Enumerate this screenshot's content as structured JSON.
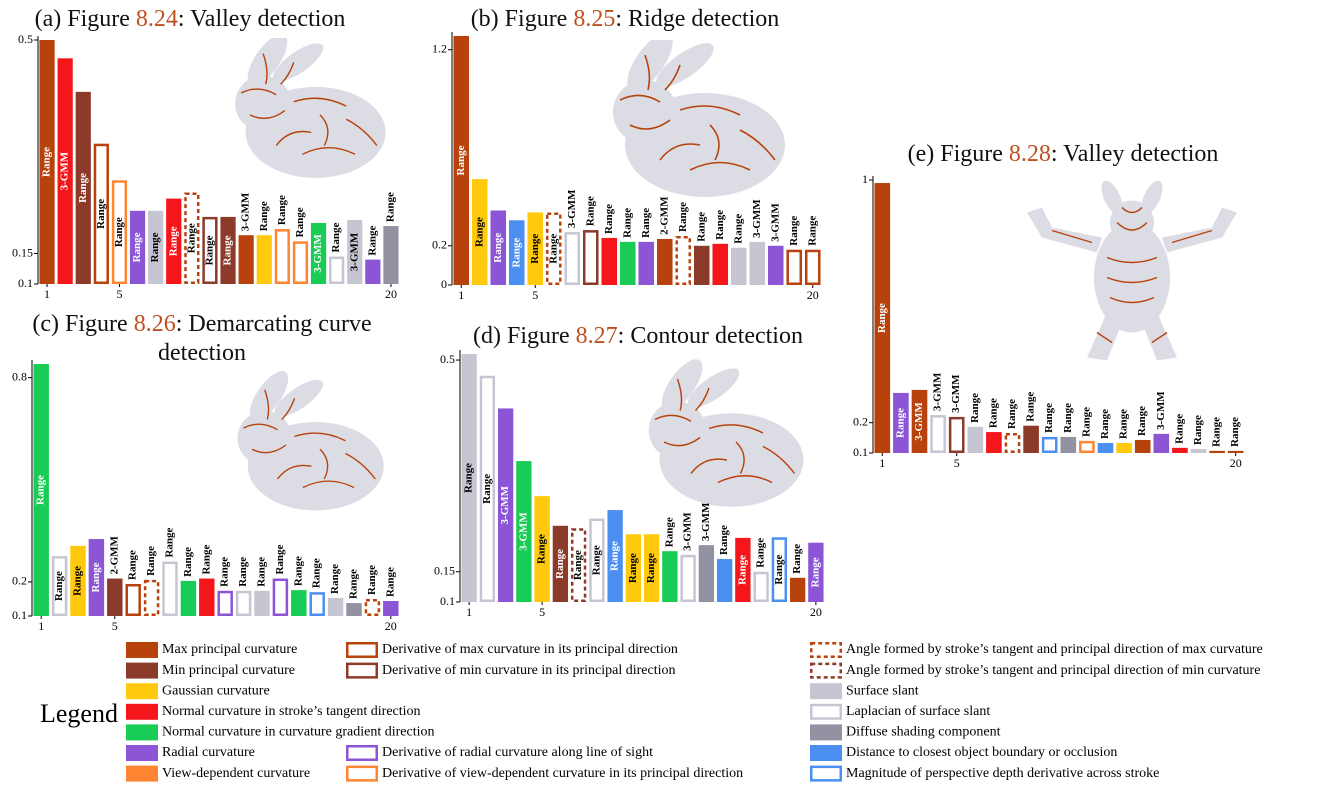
{
  "chart_data": [
    {
      "type": "bar",
      "title_prefix": "(a) Figure ",
      "figure_ref": "8.24",
      "title_suffix": ": Valley detection",
      "x": [
        1,
        2,
        3,
        4,
        5,
        6,
        7,
        8,
        9,
        10,
        11,
        12,
        13,
        14,
        15,
        16,
        17,
        18,
        19,
        20
      ],
      "values": [
        0.5,
        0.47,
        0.415,
        0.33,
        0.27,
        0.22,
        0.22,
        0.24,
        0.25,
        0.21,
        0.21,
        0.18,
        0.18,
        0.19,
        0.17,
        0.2,
        0.145,
        0.205,
        0.14,
        0.195
      ],
      "bar_labels": [
        "Range",
        "3-GMM",
        "Range",
        "Range",
        "Range",
        "Range",
        "Range",
        "Range",
        "Range",
        "Range",
        "Range",
        "3-GMM",
        "Range",
        "Range",
        "Range",
        "3-GMM",
        "Range",
        "3-GMM",
        "Range",
        "Range"
      ],
      "colors": [
        "#b8420c",
        "#f5161b",
        "#8c3b2b",
        "#b8420c",
        "#ff8533",
        "#8b55d6",
        "#c6c6d2",
        "#f5161b",
        "#b8420c",
        "#8c3b2b",
        "#8c3b2b",
        "#b8420c",
        "#ffc90e",
        "#ff8533",
        "#ff8533",
        "#19cc55",
        "#c6c6d2",
        "#c6c6d2",
        "#8b55d6",
        "#9292a2"
      ],
      "styles": [
        "solid",
        "solid",
        "solid",
        "outline",
        "outline",
        "solid",
        "solid",
        "solid",
        "dashed",
        "outline",
        "solid",
        "solid",
        "solid",
        "outline",
        "outline",
        "solid",
        "outline",
        "solid",
        "solid",
        "solid"
      ],
      "xlim": [
        0.5,
        20.5
      ],
      "xticks": [
        1,
        5,
        20
      ],
      "ylim": [
        0.1,
        0.5
      ],
      "yticks": [
        0.1,
        0.15,
        0.5
      ]
    },
    {
      "type": "bar",
      "title_prefix": "(b) Figure ",
      "figure_ref": "8.25",
      "title_suffix": ": Ridge detection",
      "x": [
        1,
        2,
        3,
        4,
        5,
        6,
        7,
        8,
        9,
        10,
        11,
        12,
        13,
        14,
        15,
        16,
        17,
        18,
        19,
        20
      ],
      "values": [
        1.27,
        0.54,
        0.38,
        0.33,
        0.37,
        0.37,
        0.27,
        0.28,
        0.24,
        0.22,
        0.22,
        0.235,
        0.25,
        0.2,
        0.21,
        0.19,
        0.22,
        0.2,
        0.18,
        0.18
      ],
      "bar_labels": [
        "Range",
        "Range",
        "Range",
        "Range",
        "Range",
        "Range",
        "3-GMM",
        "Range",
        "Range",
        "Range",
        "Range",
        "2-GMM",
        "Range",
        "Range",
        "Range",
        "Range",
        "3-GMM",
        "3-GMM",
        "Range",
        "Range"
      ],
      "colors": [
        "#b8420c",
        "#ffc90e",
        "#8b55d6",
        "#4b8ff0",
        "#ffc90e",
        "#b8420c",
        "#c6c6d2",
        "#8c3b2b",
        "#f5161b",
        "#19cc55",
        "#8b55d6",
        "#b8420c",
        "#b8420c",
        "#8c3b2b",
        "#f5161b",
        "#c6c6d2",
        "#c6c6d2",
        "#8b55d6",
        "#b8420c",
        "#b8420c"
      ],
      "styles": [
        "solid",
        "solid",
        "solid",
        "solid",
        "solid",
        "dashed",
        "outline",
        "outline",
        "solid",
        "solid",
        "solid",
        "solid",
        "dashed",
        "solid",
        "solid",
        "solid",
        "solid",
        "solid",
        "outline",
        "outline"
      ],
      "xlim": [
        0.5,
        20.5
      ],
      "xticks": [
        1,
        5,
        20
      ],
      "ylim": [
        0,
        1.27
      ],
      "yticks": [
        0,
        0.2,
        1.2
      ]
    },
    {
      "type": "bar",
      "title_prefix": "(c) Figure ",
      "figure_ref": "8.26",
      "title_suffix": ": Demarcating curve detection",
      "x": [
        1,
        2,
        3,
        4,
        5,
        6,
        7,
        8,
        9,
        10,
        11,
        12,
        13,
        14,
        15,
        16,
        17,
        18,
        19,
        20
      ],
      "values": [
        0.84,
        0.276,
        0.306,
        0.326,
        0.21,
        0.194,
        0.206,
        0.26,
        0.203,
        0.21,
        0.174,
        0.174,
        0.174,
        0.21,
        0.176,
        0.17,
        0.153,
        0.138,
        0.15,
        0.144
      ],
      "bar_labels": [
        "Range",
        "Range",
        "Range",
        "Range",
        "2-GMM",
        "Range",
        "Range",
        "Range",
        "Range",
        "Range",
        "Range",
        "Range",
        "Range",
        "Range",
        "Range",
        "Range",
        "Range",
        "Range",
        "Range",
        "Range"
      ],
      "colors": [
        "#19cc55",
        "#c6c6d2",
        "#ffc90e",
        "#8b55d6",
        "#8c3b2b",
        "#b8420c",
        "#b8420c",
        "#c6c6d2",
        "#19cc55",
        "#f5161b",
        "#8b55d6",
        "#c6c6d2",
        "#c6c6d2",
        "#8b55d6",
        "#19cc55",
        "#4b8ff0",
        "#c6c6d2",
        "#9292a2",
        "#b8420c",
        "#8b55d6"
      ],
      "styles": [
        "solid",
        "outline",
        "solid",
        "solid",
        "solid",
        "outline",
        "dashed",
        "outline",
        "solid",
        "solid",
        "outline",
        "outline",
        "solid",
        "outline",
        "solid",
        "outline",
        "solid",
        "solid",
        "dashed",
        "solid"
      ],
      "xlim": [
        0.5,
        20.5
      ],
      "xticks": [
        1,
        5,
        20
      ],
      "ylim": [
        0.1,
        0.84
      ],
      "yticks": [
        0.1,
        0.2,
        0.8
      ]
    },
    {
      "type": "bar",
      "title_prefix": "(d) Figure ",
      "figure_ref": "8.27",
      "title_suffix": ": Contour detection",
      "x": [
        1,
        2,
        3,
        4,
        5,
        6,
        7,
        8,
        9,
        10,
        11,
        12,
        13,
        14,
        15,
        16,
        17,
        18,
        19,
        20
      ],
      "values": [
        0.51,
        0.474,
        0.42,
        0.333,
        0.275,
        0.226,
        0.222,
        0.238,
        0.252,
        0.212,
        0.212,
        0.184,
        0.178,
        0.194,
        0.171,
        0.206,
        0.15,
        0.207,
        0.14,
        0.198
      ],
      "bar_labels": [
        "Range",
        "Range",
        "3-GMM",
        "3-GMM",
        "Range",
        "Range",
        "Range",
        "Range",
        "Range",
        "Range",
        "Range",
        "Range",
        "3-GMM",
        "3-GMM",
        "Range",
        "Range",
        "Range",
        "Range",
        "Range",
        "Range"
      ],
      "colors": [
        "#c6c6d2",
        "#c6c6d2",
        "#8b55d6",
        "#19cc55",
        "#ffc90e",
        "#8c3b2b",
        "#8c3b2b",
        "#c6c6d2",
        "#4b8ff0",
        "#ffc90e",
        "#ffc90e",
        "#19cc55",
        "#c6c6d2",
        "#9292a2",
        "#4b8ff0",
        "#f5161b",
        "#c6c6d2",
        "#4b8ff0",
        "#b8420c",
        "#8b55d6"
      ],
      "styles": [
        "solid",
        "outline",
        "solid",
        "solid",
        "solid",
        "solid",
        "dashed",
        "outline",
        "solid",
        "solid",
        "solid",
        "solid",
        "outline",
        "solid",
        "solid",
        "solid",
        "outline",
        "outline",
        "solid",
        "solid"
      ],
      "xlim": [
        0.5,
        20.5
      ],
      "xticks": [
        1,
        5,
        20
      ],
      "ylim": [
        0.1,
        0.51
      ],
      "yticks": [
        0.1,
        0.15,
        0.5
      ]
    },
    {
      "type": "bar",
      "title_prefix": "(e) Figure ",
      "figure_ref": "8.28",
      "title_suffix": ": Valley detection",
      "x": [
        1,
        2,
        3,
        4,
        5,
        6,
        7,
        8,
        9,
        10,
        11,
        12,
        13,
        14,
        15,
        16,
        17,
        18,
        19,
        20
      ],
      "values": [
        0.99,
        0.298,
        0.308,
        0.225,
        0.219,
        0.186,
        0.169,
        0.166,
        0.19,
        0.153,
        0.153,
        0.14,
        0.133,
        0.133,
        0.143,
        0.163,
        0.117,
        0.113,
        0.107,
        0.107
      ],
      "bar_labels": [
        "Range",
        "Range",
        "3-GMM",
        "3-GMM",
        "3-GMM",
        "Range",
        "Range",
        "Range",
        "Range",
        "Range",
        "Range",
        "Range",
        "Range",
        "Range",
        "Range",
        "3-GMM",
        "Range",
        "Range",
        "Range",
        "Range"
      ],
      "colors": [
        "#b8420c",
        "#8b55d6",
        "#b8420c",
        "#c6c6d2",
        "#8c3b2b",
        "#c6c6d2",
        "#f5161b",
        "#b8420c",
        "#8c3b2b",
        "#4b8ff0",
        "#9292a2",
        "#ff8533",
        "#4b8ff0",
        "#ffc90e",
        "#b8420c",
        "#8b55d6",
        "#f5161b",
        "#c6c6d2",
        "#b8420c",
        "#b8420c"
      ],
      "styles": [
        "solid",
        "solid",
        "solid",
        "outline",
        "outline",
        "solid",
        "solid",
        "dashed",
        "solid",
        "outline",
        "solid",
        "outline",
        "solid",
        "solid",
        "solid",
        "solid",
        "solid",
        "solid",
        "solid",
        "solid"
      ],
      "xlim": [
        0.5,
        20.5
      ],
      "xticks": [
        1,
        5,
        20
      ],
      "ylim": [
        0.1,
        1
      ],
      "yticks": [
        0.1,
        0.2,
        1
      ]
    }
  ],
  "legend": {
    "title": "Legend",
    "entries": [
      {
        "name": "Max principal curvature",
        "color": "#b8420c",
        "style": "solid"
      },
      {
        "name": "Min principal curvature",
        "color": "#8c3b2b",
        "style": "solid"
      },
      {
        "name": "Gaussian curvature",
        "color": "#ffc90e",
        "style": "solid"
      },
      {
        "name": "Normal curvature in stroke’s tangent direction",
        "color": "#f5161b",
        "style": "solid"
      },
      {
        "name": "Normal curvature in curvature gradient direction",
        "color": "#19cc55",
        "style": "solid"
      },
      {
        "name": "Radial curvature",
        "color": "#8b55d6",
        "style": "solid"
      },
      {
        "name": "View-dependent curvature",
        "color": "#ff8533",
        "style": "solid"
      },
      {
        "name": "Derivative of max curvature in its principal direction",
        "color": "#b8420c",
        "style": "outline"
      },
      {
        "name": "Derivative of min curvature in its principal direction",
        "color": "#8c3b2b",
        "style": "outline"
      },
      {
        "name": "Derivative of radial curvature along line of sight",
        "color": "#8b55d6",
        "style": "outline"
      },
      {
        "name": "Derivative of view-dependent curvature in its principal direction",
        "color": "#ff8533",
        "style": "outline"
      },
      {
        "name": "Angle formed by stroke’s tangent and principal direction of max curvature",
        "color": "#b8420c",
        "style": "dashed"
      },
      {
        "name": "Angle formed by stroke’s tangent and principal direction of min curvature",
        "color": "#8c3b2b",
        "style": "dashed"
      },
      {
        "name": "Surface slant",
        "color": "#c6c6d2",
        "style": "solid"
      },
      {
        "name": "Laplacian of surface slant",
        "color": "#c6c6d2",
        "style": "outline"
      },
      {
        "name": "Diffuse shading component",
        "color": "#9292a2",
        "style": "solid"
      },
      {
        "name": "Distance to closest object boundary or occlusion",
        "color": "#4b8ff0",
        "style": "solid"
      },
      {
        "name": "Magnitude of perspective depth derivative across stroke",
        "color": "#4b8ff0",
        "style": "outline"
      }
    ]
  }
}
